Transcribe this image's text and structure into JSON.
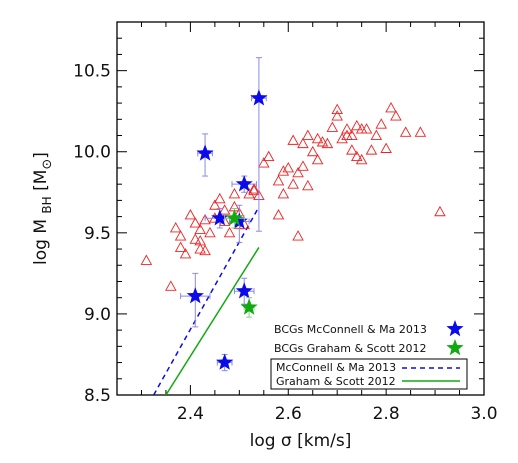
{
  "chart_data": {
    "type": "scatter",
    "x_axis": {
      "range": [
        2.25,
        3.0
      ],
      "ticks": [
        2.4,
        2.6,
        2.8,
        3.0
      ],
      "tick_labels": [
        "2.4",
        "2.6",
        "2.8",
        "3.0"
      ],
      "minor_step": 0.05,
      "label": "log σ [km/s]"
    },
    "y_axis": {
      "range": [
        8.5,
        10.8
      ],
      "ticks": [
        8.5,
        9.0,
        9.5,
        10.0,
        10.5
      ],
      "tick_labels": [
        "8.5",
        "9.0",
        "9.5",
        "10.0",
        "10.5"
      ],
      "minor_step": 0.1,
      "label_main": "log M",
      "label_sub": "BH",
      "label_unit": "[M",
      "label_unit_end": "]"
    },
    "grid": false,
    "legend_position": "bottom-right",
    "series": [
      {
        "marker": "open-triangle",
        "color": "#ee2222",
        "points": [
          [
            2.31,
            9.33
          ],
          [
            2.36,
            9.17
          ],
          [
            2.37,
            9.53
          ],
          [
            2.38,
            9.48
          ],
          [
            2.38,
            9.41
          ],
          [
            2.39,
            9.37
          ],
          [
            2.4,
            9.61
          ],
          [
            2.41,
            9.56
          ],
          [
            2.41,
            9.46
          ],
          [
            2.42,
            9.45
          ],
          [
            2.42,
            9.4
          ],
          [
            2.42,
            9.52
          ],
          [
            2.43,
            9.58
          ],
          [
            2.43,
            9.39
          ],
          [
            2.44,
            9.5
          ],
          [
            2.45,
            9.67
          ],
          [
            2.45,
            9.59
          ],
          [
            2.46,
            9.71
          ],
          [
            2.47,
            9.64
          ],
          [
            2.47,
            9.57
          ],
          [
            2.48,
            9.5
          ],
          [
            2.49,
            9.74
          ],
          [
            2.49,
            9.66
          ],
          [
            2.5,
            9.55
          ],
          [
            2.5,
            9.62
          ],
          [
            2.51,
            9.55
          ],
          [
            2.52,
            9.74
          ],
          [
            2.53,
            9.77
          ],
          [
            2.53,
            9.76
          ],
          [
            2.54,
            9.73
          ],
          [
            2.55,
            9.93
          ],
          [
            2.56,
            9.97
          ],
          [
            2.58,
            9.61
          ],
          [
            2.58,
            9.82
          ],
          [
            2.59,
            9.74
          ],
          [
            2.59,
            9.88
          ],
          [
            2.6,
            9.9
          ],
          [
            2.61,
            10.07
          ],
          [
            2.61,
            9.8
          ],
          [
            2.62,
            9.48
          ],
          [
            2.62,
            9.87
          ],
          [
            2.63,
            10.05
          ],
          [
            2.63,
            9.91
          ],
          [
            2.64,
            10.1
          ],
          [
            2.64,
            9.79
          ],
          [
            2.65,
            10.0
          ],
          [
            2.66,
            9.95
          ],
          [
            2.67,
            10.06
          ],
          [
            2.68,
            10.05
          ],
          [
            2.69,
            10.15
          ],
          [
            2.7,
            10.22
          ],
          [
            2.71,
            10.08
          ],
          [
            2.72,
            10.14
          ],
          [
            2.72,
            10.1
          ],
          [
            2.73,
            10.1
          ],
          [
            2.73,
            10.01
          ],
          [
            2.74,
            10.16
          ],
          [
            2.74,
            9.97
          ],
          [
            2.75,
            9.95
          ],
          [
            2.75,
            10.14
          ],
          [
            2.76,
            10.14
          ],
          [
            2.77,
            10.01
          ],
          [
            2.78,
            10.1
          ],
          [
            2.79,
            10.17
          ],
          [
            2.81,
            10.27
          ],
          [
            2.82,
            10.22
          ],
          [
            2.84,
            10.12
          ],
          [
            2.87,
            10.12
          ],
          [
            2.91,
            9.63
          ],
          [
            2.7,
            10.26
          ],
          [
            2.8,
            10.02
          ],
          [
            2.66,
            10.08
          ]
        ]
      },
      {
        "name": "BCGs McConnell & Ma 2013",
        "marker": "filled-star",
        "color": "#0b0bea",
        "points": [
          {
            "x": 2.41,
            "y": 9.11,
            "xerr": 0.03,
            "yerr_lo": 0.19,
            "yerr_hi": 0.14
          },
          {
            "x": 2.43,
            "y": 9.99,
            "xerr": 0.015,
            "yerr_lo": 0.14,
            "yerr_hi": 0.12
          },
          {
            "x": 2.46,
            "y": 9.59,
            "xerr": 0.03,
            "yerr_lo": 0.06,
            "yerr_hi": 0.06
          },
          {
            "x": 2.47,
            "y": 8.7,
            "xerr": 0.015,
            "yerr_lo": 0.05,
            "yerr_hi": 0.05
          },
          {
            "x": 2.5,
            "y": 9.57,
            "xerr": 0.02,
            "yerr_lo": 0.13,
            "yerr_hi": 0.1
          },
          {
            "x": 2.51,
            "y": 9.8,
            "xerr": 0.025,
            "yerr_lo": 0.05,
            "yerr_hi": 0.05
          },
          {
            "x": 2.51,
            "y": 9.14,
            "xerr": 0.02,
            "yerr_lo": 0.08,
            "yerr_hi": 0.08
          },
          {
            "x": 2.54,
            "y": 10.33,
            "xerr": 0.015,
            "yerr_lo": 0.82,
            "yerr_hi": 0.25
          }
        ]
      },
      {
        "name": "BCGs Graham & Scott 2012",
        "marker": "filled-star",
        "color": "#11aa11",
        "points": [
          {
            "x": 2.49,
            "y": 9.59,
            "xerr": 0.02,
            "yerr_lo": 0.06,
            "yerr_hi": 0.06
          },
          {
            "x": 2.52,
            "y": 9.04,
            "xerr": 0.01,
            "yerr_lo": 0.06,
            "yerr_hi": 0.06
          }
        ]
      }
    ],
    "lines": [
      {
        "name": "McConnell & Ma 2013",
        "style": "dashed",
        "color": "#0b0bea",
        "x": [
          2.325,
          2.54
        ],
        "y": [
          8.5,
          9.66
        ]
      },
      {
        "name": "Graham & Scott 2012",
        "style": "solid",
        "color": "#11aa11",
        "x": [
          2.35,
          2.54
        ],
        "y": [
          8.5,
          9.41
        ]
      }
    ]
  }
}
